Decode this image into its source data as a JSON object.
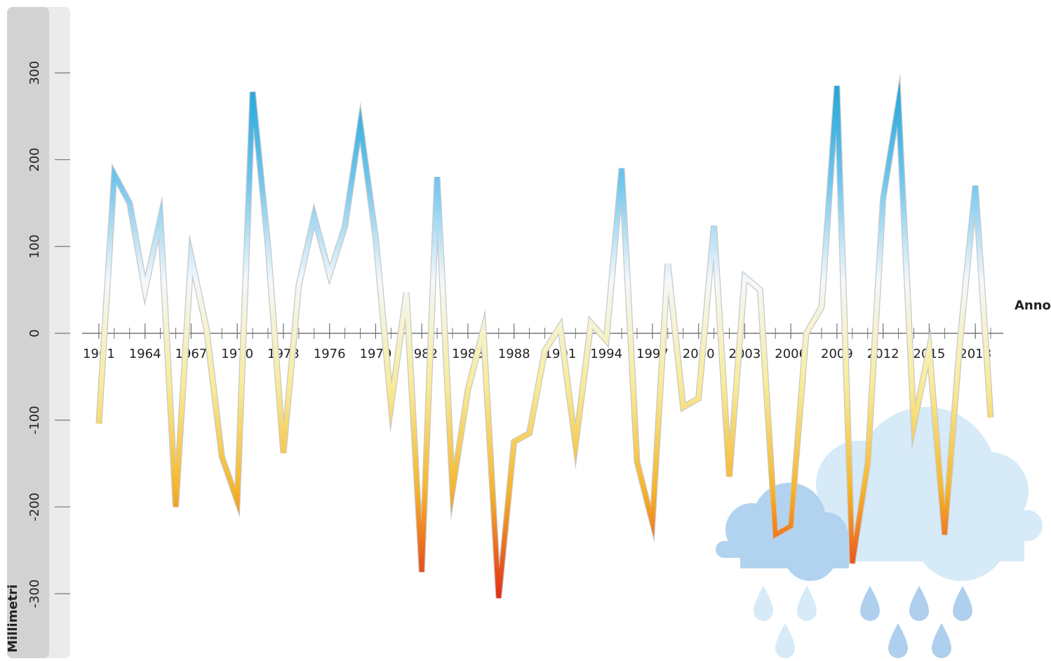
{
  "chart_data": {
    "type": "line",
    "y_label": "Millimetri",
    "x_label": "Anno",
    "x": [
      1961,
      1962,
      1963,
      1964,
      1965,
      1966,
      1967,
      1968,
      1969,
      1970,
      1971,
      1972,
      1973,
      1974,
      1975,
      1976,
      1977,
      1978,
      1979,
      1980,
      1981,
      1982,
      1983,
      1984,
      1985,
      1986,
      1987,
      1988,
      1989,
      1990,
      1991,
      1992,
      1993,
      1994,
      1995,
      1996,
      1997,
      1998,
      1999,
      2000,
      2001,
      2002,
      2003,
      2004,
      2005,
      2006,
      2007,
      2008,
      2009,
      2010,
      2011,
      2012,
      2013,
      2014,
      2015,
      2016,
      2017,
      2018,
      2019
    ],
    "series": [
      {
        "values": [
          -104,
          183,
          150,
          50,
          132,
          -200,
          88,
          5,
          -142,
          -193,
          278,
          100,
          -138,
          55,
          135,
          68,
          123,
          241,
          110,
          -83,
          47,
          -275,
          180,
          -180,
          -65,
          4,
          -305,
          -125,
          -115,
          -20,
          8,
          -128,
          12,
          -8,
          190,
          -148,
          -218,
          80,
          -85,
          -75,
          124,
          -165,
          65,
          50,
          -232,
          -222,
          0,
          30,
          285,
          -265,
          -150,
          155,
          265,
          -105,
          -18,
          -232,
          -10,
          170,
          -97
        ],
        "gradient": [
          "#1aa3d6",
          "#6cc4ee",
          "#f4f8fb",
          "#f8ec98",
          "#f6b52a",
          "#e2331a"
        ]
      }
    ],
    "xlim": [
      1960,
      2020
    ],
    "xticks": [
      1961,
      1964,
      1967,
      1970,
      1973,
      1976,
      1979,
      1982,
      1985,
      1988,
      1991,
      1994,
      1997,
      2000,
      2003,
      2006,
      2009,
      2012,
      2015,
      2018
    ],
    "ylim": [
      -350,
      350
    ],
    "yticks": [
      -300,
      -200,
      -100,
      0,
      100,
      200,
      300
    ]
  }
}
